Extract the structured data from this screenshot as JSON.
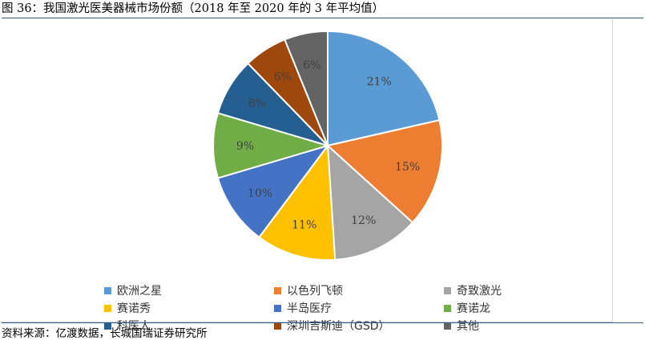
{
  "figure": {
    "title": "图 36：我国激光医美器械市场份额（2018 年至 2020 年的 3 年平均值）",
    "source": "资料来源：亿渡数据，长城国瑞证券研究所"
  },
  "chart_data": {
    "type": "pie",
    "unit": "%",
    "slices": [
      {
        "name": "欧洲之星",
        "value": 21,
        "label": "21%",
        "color": "#5b9bd5"
      },
      {
        "name": "以色列飞顿",
        "value": 15,
        "label": "15%",
        "color": "#ed7d31"
      },
      {
        "name": "奇致激光",
        "value": 12,
        "label": "12%",
        "color": "#a5a5a5"
      },
      {
        "name": "赛诺秀",
        "value": 11,
        "label": "11%",
        "color": "#ffc000"
      },
      {
        "name": "半岛医疗",
        "value": 10,
        "label": "10%",
        "color": "#4472c4"
      },
      {
        "name": "赛诺龙",
        "value": 9,
        "label": "9%",
        "color": "#70ad47"
      },
      {
        "name": "科医人",
        "value": 8,
        "label": "8%",
        "color": "#255e91"
      },
      {
        "name": "深圳吉斯迪（GSD）",
        "value": 6,
        "label": "6%",
        "color": "#9e480e"
      },
      {
        "name": "其他",
        "value": 6,
        "label": "6%",
        "color": "#636363"
      }
    ],
    "legend_position": "bottom"
  }
}
